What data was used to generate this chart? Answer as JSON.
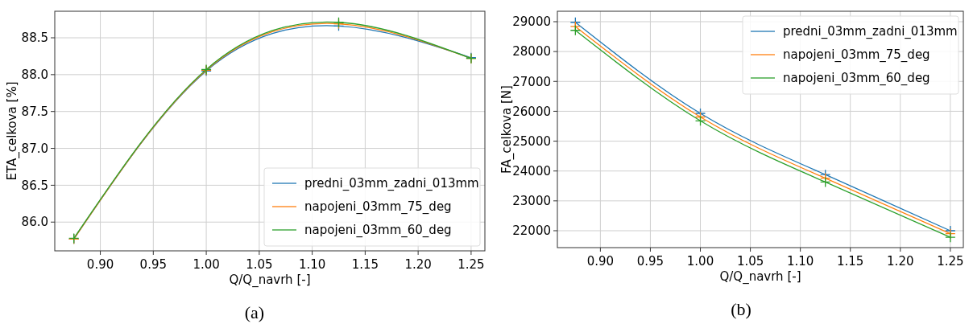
{
  "chart_data": [
    {
      "type": "line",
      "xlabel": "Q/Q_navrh [-]",
      "ylabel": "ETA_celkova [%]",
      "annotations": [
        "(a)"
      ],
      "x": [
        0.875,
        1.0,
        1.125,
        1.25
      ],
      "xlim": [
        0.857,
        1.263
      ],
      "xticks": [
        {
          "value": 0.9,
          "label": "0.90"
        },
        {
          "value": 0.95,
          "label": "0.95"
        },
        {
          "value": 1.0,
          "label": "1.00"
        },
        {
          "value": 1.05,
          "label": "1.05"
        },
        {
          "value": 1.1,
          "label": "1.10"
        },
        {
          "value": 1.15,
          "label": "1.15"
        },
        {
          "value": 1.2,
          "label": "1.20"
        },
        {
          "value": 1.25,
          "label": "1.25"
        }
      ],
      "ylim": [
        85.61,
        88.86
      ],
      "yticks": [
        {
          "value": 86,
          "label": "86.0"
        },
        86.5,
        {
          "value": 87,
          "label": "87.0"
        },
        87.5,
        {
          "value": 88,
          "label": "88.0"
        },
        88.5
      ],
      "grid": true,
      "legend": "bottom right",
      "marker": "cross",
      "line_style": "solid",
      "series": [
        {
          "name": "predni_03mm_zadni_013mm",
          "color": "#1f77b4",
          "values": [
            85.77,
            88.05,
            88.66,
            88.23
          ]
        },
        {
          "name": "napojeni_03mm_75_deg",
          "color": "#ff7f0e",
          "values": [
            85.77,
            88.06,
            88.69,
            88.22
          ]
        },
        {
          "name": "napojeni_03mm_60_deg",
          "color": "#2ca02c",
          "values": [
            85.78,
            88.07,
            88.71,
            88.22
          ]
        }
      ]
    },
    {
      "type": "line",
      "xlabel": "Q/Q_navrh [-]",
      "ylabel": "FA_celkova [N]",
      "annotations": [
        "(b)"
      ],
      "x": [
        0.875,
        1.0,
        1.125,
        1.25
      ],
      "xlim": [
        0.857,
        1.263
      ],
      "xticks": [
        {
          "value": 0.9,
          "label": "0.90"
        },
        {
          "value": 0.95,
          "label": "0.95"
        },
        {
          "value": 1.0,
          "label": "1.00"
        },
        {
          "value": 1.05,
          "label": "1.05"
        },
        {
          "value": 1.1,
          "label": "1.10"
        },
        {
          "value": 1.15,
          "label": "1.15"
        },
        {
          "value": 1.2,
          "label": "1.20"
        },
        {
          "value": 1.25,
          "label": "1.25"
        }
      ],
      "ylim": [
        21434,
        29350
      ],
      "yticks": [
        22000,
        23000,
        24000,
        25000,
        26000,
        27000,
        28000,
        29000
      ],
      "grid": true,
      "legend": "top right",
      "marker": "cross",
      "line_style": "solid",
      "series": [
        {
          "name": "predni_03mm_zadni_013mm",
          "color": "#1f77b4",
          "values": [
            28980,
            25930,
            23880,
            22000
          ]
        },
        {
          "name": "napojeni_03mm_75_deg",
          "color": "#ff7f0e",
          "values": [
            28840,
            25810,
            23760,
            21900
          ]
        },
        {
          "name": "napojeni_03mm_60_deg",
          "color": "#2ca02c",
          "values": [
            28710,
            25680,
            23630,
            21780
          ]
        }
      ]
    }
  ]
}
